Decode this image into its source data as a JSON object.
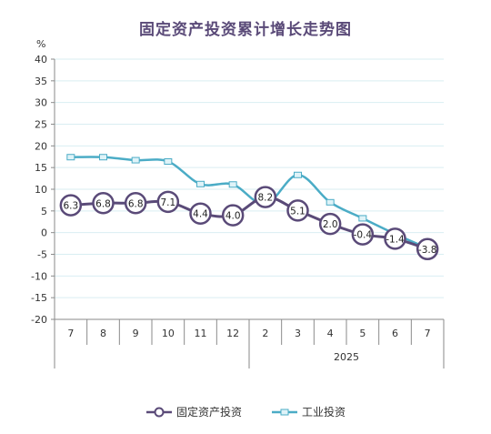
{
  "colors": {
    "fixed_investment": "#5a4a78",
    "industrial_investment": "#4bacc6",
    "title": "#5a4a78",
    "grid": "#d9eef2"
  },
  "chart_data": {
    "type": "line",
    "title": "固定资产投资累计增长走势图",
    "ylabel": "%",
    "ylim": [
      -20,
      40
    ],
    "yticks": [
      40,
      35,
      30,
      25,
      20,
      15,
      10,
      5,
      0,
      -5,
      -10,
      -15,
      -20
    ],
    "categories": [
      "7",
      "8",
      "9",
      "10",
      "11",
      "12",
      "2",
      "3",
      "4",
      "5",
      "6",
      "7"
    ],
    "year_group": {
      "label": "2025",
      "start_index": 6,
      "end_index": 11
    },
    "grid": true,
    "legend_position": "bottom",
    "series": [
      {
        "name": "固定资产投资",
        "key": "fixed",
        "values": [
          6.3,
          6.8,
          6.8,
          7.1,
          4.4,
          4.0,
          8.2,
          5.1,
          2.0,
          -0.4,
          -1.4,
          -3.8
        ],
        "labels": [
          "6.3",
          "6.8",
          "6.8",
          "7.1",
          "4.4",
          "4.0",
          "8.2",
          "5.1",
          "2.0",
          "-0.4",
          "-1.4",
          "-3.8"
        ]
      },
      {
        "name": "工业投资",
        "key": "industry",
        "values": [
          17.4,
          17.4,
          16.7,
          16.4,
          11.2,
          11.1,
          6.5,
          13.3,
          7.0,
          3.3,
          -0.3,
          -3.6
        ]
      }
    ]
  }
}
